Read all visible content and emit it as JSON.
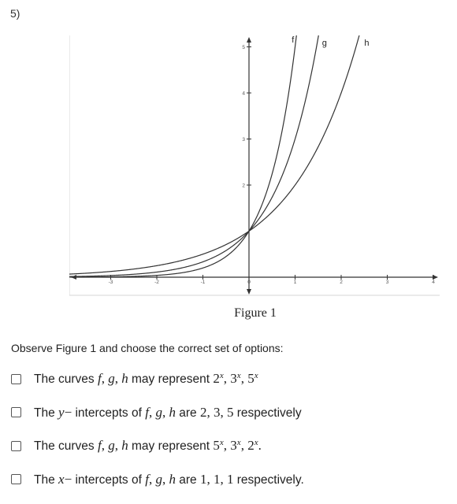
{
  "question": {
    "number": "5)"
  },
  "figure": {
    "caption": "Figure 1",
    "curve_labels": [
      "f",
      "g",
      "h"
    ]
  },
  "chart_data": {
    "type": "line",
    "x_ticks": [
      "-3",
      "-2",
      "-1",
      "0",
      "1",
      "2",
      "3",
      "4"
    ],
    "y_ticks": [
      "2",
      "3",
      "4",
      "5"
    ],
    "xlim": [
      -3.9,
      4.2
    ],
    "ylim": [
      -0.3,
      5.4
    ],
    "series": [
      {
        "name": "f",
        "base": 5
      },
      {
        "name": "g",
        "base": 3
      },
      {
        "name": "h",
        "base": 2
      }
    ]
  },
  "prompt": "Observe Figure 1 and choose the correct set of options:",
  "options": [
    {
      "parts": [
        {
          "t": "The curves ",
          "s": "text"
        },
        {
          "t": "f",
          "s": "m"
        },
        {
          "t": ", ",
          "s": "n"
        },
        {
          "t": "g",
          "s": "m"
        },
        {
          "t": ", ",
          "s": "n"
        },
        {
          "t": "h",
          "s": "m"
        },
        {
          "t": " may represent ",
          "s": "text"
        },
        {
          "t": "2",
          "s": "n"
        },
        {
          "t": "x",
          "s": "sup"
        },
        {
          "t": ", ",
          "s": "n"
        },
        {
          "t": "3",
          "s": "n"
        },
        {
          "t": "x",
          "s": "sup"
        },
        {
          "t": ", ",
          "s": "n"
        },
        {
          "t": "5",
          "s": "n"
        },
        {
          "t": "x",
          "s": "sup"
        }
      ]
    },
    {
      "parts": [
        {
          "t": "The ",
          "s": "text"
        },
        {
          "t": "y",
          "s": "m"
        },
        {
          "t": "−",
          "s": "n"
        },
        {
          "t": " intercepts of ",
          "s": "text"
        },
        {
          "t": "f",
          "s": "m"
        },
        {
          "t": ", ",
          "s": "n"
        },
        {
          "t": "g",
          "s": "m"
        },
        {
          "t": ", ",
          "s": "n"
        },
        {
          "t": "h",
          "s": "m"
        },
        {
          "t": " are ",
          "s": "text"
        },
        {
          "t": "2, 3, 5",
          "s": "n"
        },
        {
          "t": " respectively",
          "s": "text"
        }
      ]
    },
    {
      "parts": [
        {
          "t": "The curves ",
          "s": "text"
        },
        {
          "t": "f",
          "s": "m"
        },
        {
          "t": ", ",
          "s": "n"
        },
        {
          "t": "g",
          "s": "m"
        },
        {
          "t": ", ",
          "s": "n"
        },
        {
          "t": "h",
          "s": "m"
        },
        {
          "t": " may represent ",
          "s": "text"
        },
        {
          "t": "5",
          "s": "n"
        },
        {
          "t": "x",
          "s": "sup"
        },
        {
          "t": ", ",
          "s": "n"
        },
        {
          "t": "3",
          "s": "n"
        },
        {
          "t": "x",
          "s": "sup"
        },
        {
          "t": ", ",
          "s": "n"
        },
        {
          "t": "2",
          "s": "n"
        },
        {
          "t": "x",
          "s": "sup"
        },
        {
          "t": ".",
          "s": "n"
        }
      ]
    },
    {
      "parts": [
        {
          "t": "The ",
          "s": "text"
        },
        {
          "t": "x",
          "s": "m"
        },
        {
          "t": "−",
          "s": "n"
        },
        {
          "t": " intercepts of ",
          "s": "text"
        },
        {
          "t": "f",
          "s": "m"
        },
        {
          "t": ", ",
          "s": "n"
        },
        {
          "t": "g",
          "s": "m"
        },
        {
          "t": ", ",
          "s": "n"
        },
        {
          "t": "h",
          "s": "m"
        },
        {
          "t": " are ",
          "s": "text"
        },
        {
          "t": "1, 1, 1",
          "s": "n"
        },
        {
          "t": " respectively.",
          "s": "text"
        }
      ]
    }
  ]
}
